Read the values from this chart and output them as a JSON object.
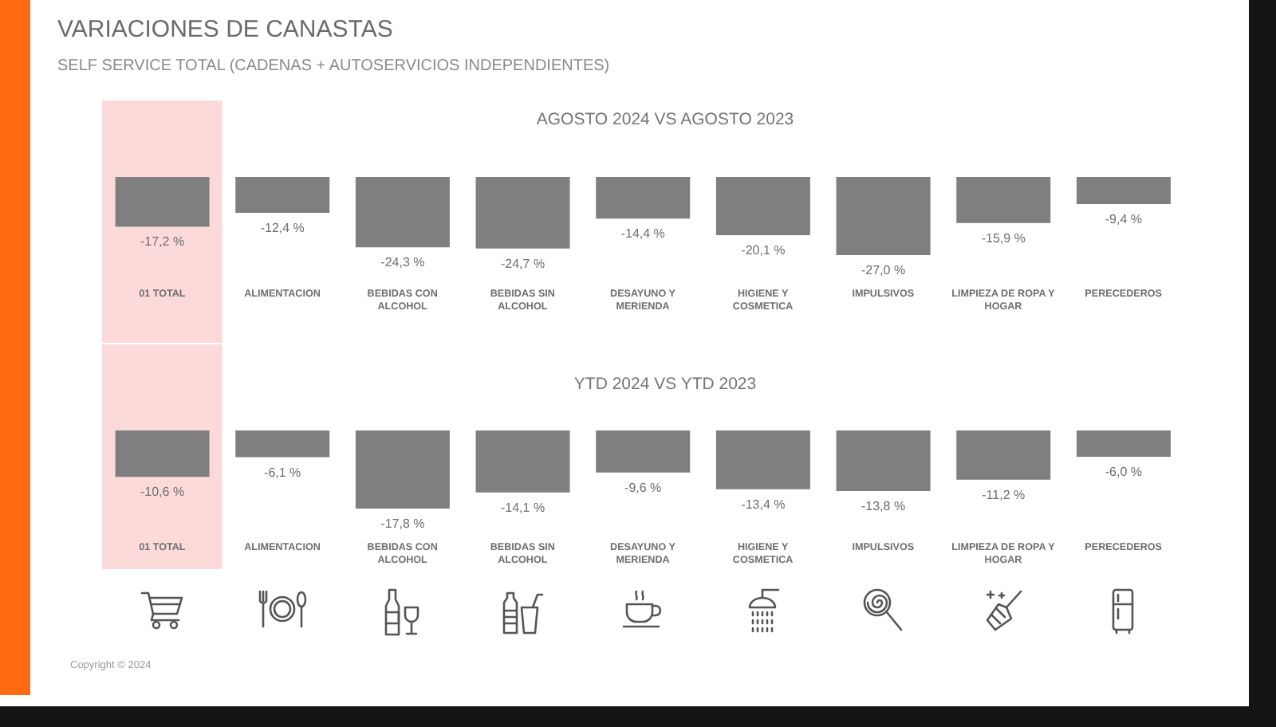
{
  "chart_data": [
    {
      "type": "other",
      "title": "VARIACIONES DE CANASTAS",
      "subtitle": "SELF SERVICE TOTAL (CADENAS + AUTOSERVICIOS INDEPENDIENTES)"
    },
    {
      "type": "bar",
      "title": "AGOSTO 2024 VS AGOSTO 2023",
      "categories": [
        "01 TOTAL",
        "ALIMENTACION",
        "BEBIDAS CON ALCOHOL",
        "BEBIDAS SIN ALCOHOL",
        "DESAYUNO Y MERIENDA",
        "HIGIENE Y COSMETICA",
        "IMPULSIVOS",
        "LIMPIEZA DE ROPA Y HOGAR",
        "PERECEDEROS"
      ],
      "values": [
        -17.2,
        -12.4,
        -24.3,
        -24.7,
        -14.4,
        -20.1,
        -27.0,
        -15.9,
        -9.4
      ],
      "value_labels": [
        "-17,2 %",
        "-12,4 %",
        "-24,3 %",
        "-24,7 %",
        "-14,4 %",
        "-20,1 %",
        "-27,0 %",
        "-15,9 %",
        "-9,4 %"
      ],
      "color": "#7f7f7f",
      "bands": [
        {
          "axis": "x",
          "from": "01 TOTAL",
          "to": "01 TOTAL",
          "color": "#fcdada"
        }
      ]
    },
    {
      "type": "bar",
      "title": "YTD 2024 VS YTD 2023",
      "categories": [
        "01 TOTAL",
        "ALIMENTACION",
        "BEBIDAS CON ALCOHOL",
        "BEBIDAS SIN ALCOHOL",
        "DESAYUNO Y MERIENDA",
        "HIGIENE Y COSMETICA",
        "IMPULSIVOS",
        "LIMPIEZA DE ROPA Y HOGAR",
        "PERECEDEROS"
      ],
      "values": [
        -10.6,
        -6.1,
        -17.8,
        -14.1,
        -9.6,
        -13.4,
        -13.8,
        -11.2,
        -6.0
      ],
      "value_labels": [
        "-10,6 %",
        "-6,1 %",
        "-17,8 %",
        "-14,1 %",
        "-9,6 %",
        "-13,4 %",
        "-13,8 %",
        "-11,2 %",
        "-6,0 %"
      ],
      "color": "#7f7f7f",
      "bands": [
        {
          "axis": "x",
          "from": "01 TOTAL",
          "to": "01 TOTAL",
          "color": "#fcdada"
        }
      ],
      "annotations": [
        "Copyright © 2024"
      ]
    }
  ]
}
